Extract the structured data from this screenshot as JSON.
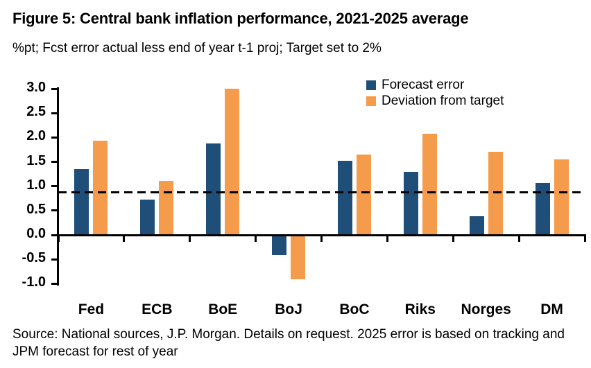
{
  "title": "Figure 5: Central bank inflation performance, 2021-2025 average",
  "subtitle": "%pt; Fcst error actual less end of year t-1 proj; Target set to 2%",
  "source": {
    "line1": "Source: National sources, J.P. Morgan. Details on request. 2025 error is based on tracking and",
    "line2": "JPM forecast for rest of year"
  },
  "colors": {
    "forecast_error": "#1f4e79",
    "deviation_from_target": "#f59b4c",
    "axis": "#000000"
  },
  "chart_data": {
    "type": "bar",
    "categories": [
      "Fed",
      "ECB",
      "BoE",
      "BoJ",
      "BoC",
      "Riks",
      "Norges",
      "DM"
    ],
    "series": [
      {
        "name": "Forecast error",
        "color": "#1f4e79",
        "values": [
          1.35,
          0.72,
          1.87,
          -0.39,
          1.52,
          1.3,
          0.38,
          1.06
        ]
      },
      {
        "name": "Deviation from target",
        "color": "#f59b4c",
        "values": [
          1.93,
          1.11,
          3.0,
          -0.89,
          1.65,
          2.08,
          1.71,
          1.55
        ]
      }
    ],
    "ylim": [
      -1.0,
      3.0
    ],
    "yticks": [
      "3.0",
      "2.5",
      "2.0",
      "1.5",
      "1.0",
      "0.5",
      "0.0",
      "-0.5",
      "-1.0"
    ],
    "target_line": 0.87,
    "target_line_style": "dashed",
    "legend_position": "top-right",
    "grid": false
  }
}
